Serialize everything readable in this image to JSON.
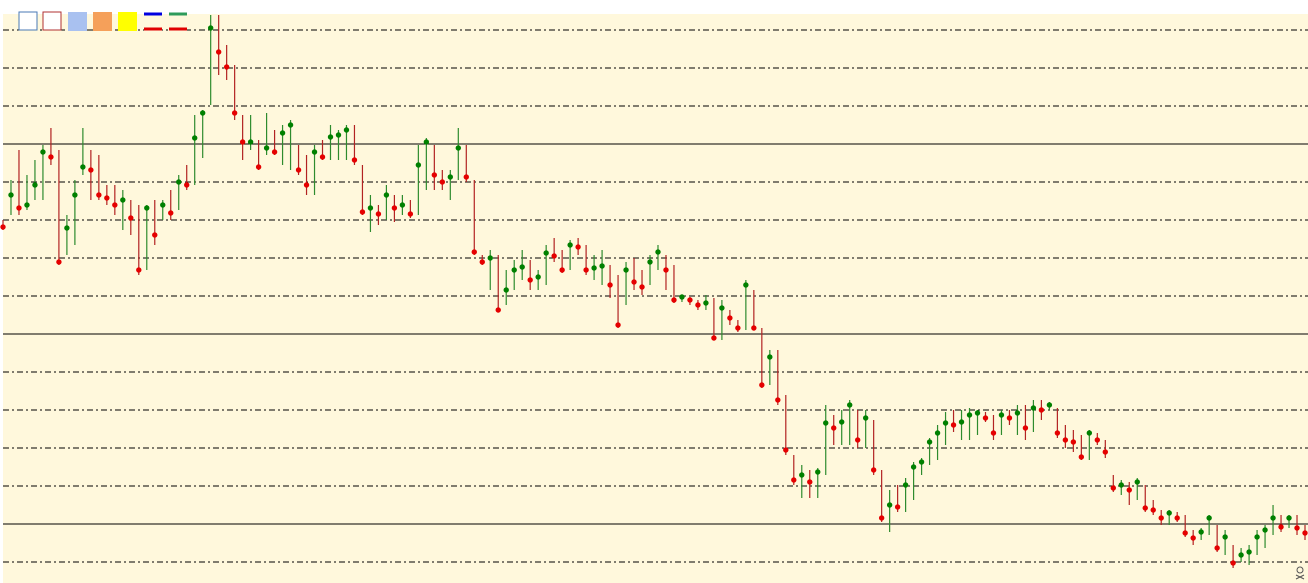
{
  "chart_data": {
    "type": "ohlc",
    "high": [
      342,
      382,
      412,
      387,
      402,
      417,
      434,
      412,
      347,
      382,
      434,
      412,
      407,
      377,
      377,
      372,
      362,
      357,
      357,
      362,
      362,
      372,
      387,
      397,
      447,
      452,
      547,
      547,
      517,
      497,
      447,
      447,
      422,
      449,
      432,
      437,
      442,
      417,
      407,
      417,
      422,
      437,
      432,
      437,
      437,
      397,
      367,
      357,
      377,
      367,
      367,
      362,
      417,
      424,
      417,
      392,
      392,
      434,
      417,
      382,
      307,
      312,
      307,
      292,
      302,
      312,
      302,
      292,
      317,
      324,
      312,
      322,
      324,
      317,
      307,
      312,
      297,
      287,
      300,
      304,
      292,
      307,
      317,
      307,
      297,
      267,
      265,
      262,
      267,
      264,
      262,
      252,
      242,
      282,
      272,
      234,
      212,
      212,
      167,
      107,
      97,
      92,
      94,
      157,
      147,
      152,
      162,
      152,
      152,
      142,
      92,
      72,
      77,
      84,
      100,
      104,
      124,
      137,
      150,
      152,
      152,
      154,
      152,
      150,
      147,
      152,
      152,
      157,
      157,
      162,
      162,
      160,
      154,
      137,
      132,
      127,
      132,
      129,
      122,
      87,
      82,
      80,
      84,
      77,
      62,
      52,
      52,
      50,
      47,
      32,
      34,
      47,
      37,
      32,
      17,
      14,
      17,
      32,
      37,
      57,
      47,
      47,
      47,
      37
    ],
    "low": [
      332,
      347,
      347,
      352,
      362,
      362,
      397,
      297,
      307,
      317,
      387,
      362,
      362,
      357,
      347,
      332,
      327,
      287,
      292,
      317,
      342,
      342,
      352,
      372,
      377,
      404,
      457,
      487,
      482,
      442,
      402,
      412,
      392,
      407,
      407,
      397,
      392,
      387,
      367,
      367,
      402,
      402,
      402,
      402,
      397,
      347,
      330,
      337,
      342,
      340,
      347,
      344,
      347,
      372,
      372,
      372,
      362,
      382,
      380,
      307,
      297,
      272,
      250,
      257,
      272,
      282,
      272,
      272,
      277,
      300,
      289,
      292,
      307,
      287,
      282,
      277,
      264,
      234,
      257,
      272,
      267,
      277,
      292,
      272,
      259,
      260,
      257,
      252,
      252,
      222,
      222,
      237,
      230,
      232,
      232,
      174,
      177,
      157,
      107,
      77,
      64,
      64,
      64,
      87,
      117,
      117,
      117,
      114,
      114,
      87,
      40,
      30,
      50,
      50,
      62,
      87,
      97,
      102,
      117,
      130,
      122,
      122,
      127,
      140,
      122,
      127,
      137,
      127,
      122,
      130,
      142,
      152,
      124,
      114,
      110,
      102,
      102,
      117,
      104,
      70,
      67,
      57,
      62,
      50,
      47,
      37,
      37,
      40,
      25,
      17,
      22,
      27,
      10,
      7,
      -6,
      0,
      -3,
      7,
      14,
      27,
      30,
      34,
      27,
      22
    ],
    "close": [
      335,
      367,
      354,
      357,
      377,
      410,
      405,
      300,
      334,
      367,
      395,
      392,
      367,
      364,
      357,
      362,
      344,
      292,
      354,
      327,
      357,
      349,
      380,
      377,
      424,
      449,
      534,
      510,
      495,
      449,
      420,
      420,
      395,
      414,
      410,
      429,
      437,
      392,
      377,
      410,
      405,
      425,
      427,
      432,
      402,
      350,
      354,
      348,
      367,
      354,
      357,
      348,
      397,
      420,
      387,
      380,
      385,
      414,
      385,
      310,
      300,
      304,
      252,
      272,
      292,
      295,
      282,
      285,
      309,
      306,
      292,
      317,
      315,
      292,
      294,
      296,
      277,
      237,
      292,
      280,
      275,
      300,
      310,
      292,
      262,
      265,
      262,
      257,
      259,
      224,
      254,
      244,
      234,
      277,
      234,
      177,
      205,
      162,
      112,
      82,
      87,
      80,
      90,
      139,
      134,
      140,
      157,
      122,
      144,
      92,
      44,
      57,
      55,
      77,
      95,
      100,
      120,
      129,
      139,
      137,
      140,
      147,
      149,
      144,
      129,
      147,
      144,
      149,
      134,
      154,
      152,
      157,
      129,
      122,
      120,
      105,
      129,
      122,
      110,
      74,
      77,
      72,
      80,
      54,
      52,
      44,
      49,
      44,
      29,
      24,
      30,
      44,
      14,
      25,
      -1,
      7,
      10,
      25,
      32,
      44,
      35,
      44,
      34,
      29
    ],
    "up_color": "#008000",
    "down_color": "#e50000",
    "up_wick_color": "#2e8b2e",
    "down_wick_color": "#b22222",
    "background": "#fff8dc",
    "ylim": [
      -21,
      548
    ],
    "yticks": [
      0,
      38,
      76,
      114,
      152,
      190,
      228,
      266,
      304,
      342,
      380,
      418,
      456,
      494,
      532
    ],
    "major_yticks": [
      38,
      228,
      418
    ],
    "grid": true
  }
}
